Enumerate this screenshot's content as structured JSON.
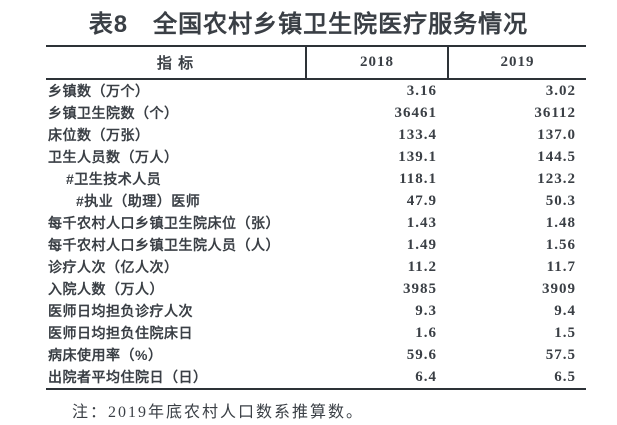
{
  "title": "表8　全国农村乡镇卫生院医疗服务情况",
  "table": {
    "header": {
      "indicator": "指 标",
      "year_2018": "2018",
      "year_2019": "2019"
    },
    "rows": [
      {
        "label": "乡镇数（万个）",
        "indent": 0,
        "y2018": "3.16",
        "y2019": "3.02"
      },
      {
        "label": "乡镇卫生院数（个）",
        "indent": 0,
        "y2018": "36461",
        "y2019": "36112"
      },
      {
        "label": "床位数（万张）",
        "indent": 0,
        "y2018": "133.4",
        "y2019": "137.0"
      },
      {
        "label": "卫生人员数（万人）",
        "indent": 0,
        "y2018": "139.1",
        "y2019": "144.5"
      },
      {
        "label": "#卫生技术人员",
        "indent": 1,
        "y2018": "118.1",
        "y2019": "123.2"
      },
      {
        "label": "#执业（助理）医师",
        "indent": 2,
        "y2018": "47.9",
        "y2019": "50.3"
      },
      {
        "label": "每千农村人口乡镇卫生院床位（张）",
        "indent": 0,
        "y2018": "1.43",
        "y2019": "1.48"
      },
      {
        "label": "每千农村人口乡镇卫生院人员（人）",
        "indent": 0,
        "y2018": "1.49",
        "y2019": "1.56"
      },
      {
        "label": "诊疗人次（亿人次）",
        "indent": 0,
        "y2018": "11.2",
        "y2019": "11.7"
      },
      {
        "label": "入院人数（万人）",
        "indent": 0,
        "y2018": "3985",
        "y2019": "3909"
      },
      {
        "label": "医师日均担负诊疗人次",
        "indent": 0,
        "y2018": "9.3",
        "y2019": "9.4"
      },
      {
        "label": "医师日均担负住院床日",
        "indent": 0,
        "y2018": "1.6",
        "y2019": "1.5"
      },
      {
        "label": "病床使用率（%）",
        "indent": 0,
        "y2018": "59.6",
        "y2019": "57.5"
      },
      {
        "label": "出院者平均住院日（日）",
        "indent": 0,
        "y2018": "6.4",
        "y2019": "6.5"
      }
    ]
  },
  "note": "注：2019年底农村人口数系推算数。",
  "colors": {
    "text": "#3a3f45",
    "rule": "#2d3237"
  }
}
